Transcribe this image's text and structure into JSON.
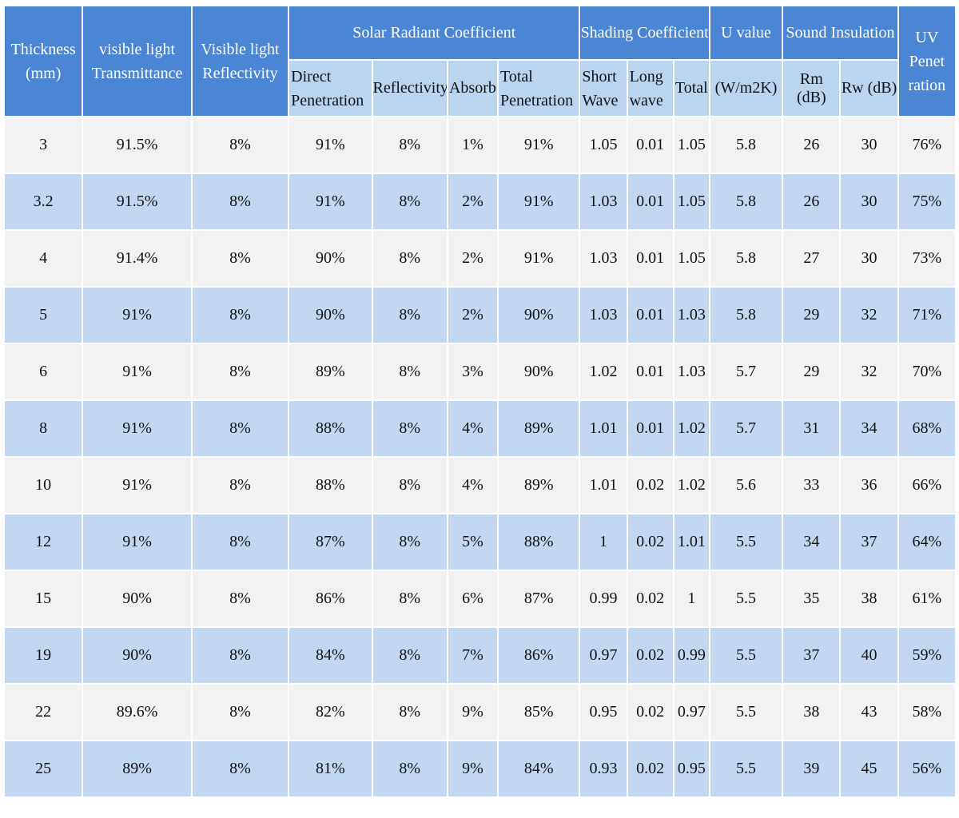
{
  "headers": {
    "thickness": "Thickness (mm)",
    "visible_transmittance": "visible light Transmittance",
    "visible_reflectivity": "Visible light Reflectivity",
    "solar_group": "Solar Radiant Coefficient",
    "solar_direct": "Direct Penetration",
    "solar_reflectivity": "Reflectivity",
    "solar_absorb": "Absorb",
    "solar_total": "Total Penetration",
    "shading_group": "Shading Coefficient",
    "shading_short": "Short Wave",
    "shading_long": "Long wave",
    "shading_total": "Total",
    "u_group": "U value",
    "u_unit": "(W/m2K)",
    "sound_group": "Sound Insulation",
    "sound_rm": "Rm (dB)",
    "sound_rw": "Rw (dB)",
    "uv": "UV Penet ration"
  },
  "rows": [
    [
      "3",
      "91.5%",
      "8%",
      "91%",
      "8%",
      "1%",
      "91%",
      "1.05",
      "0.01",
      "1.05",
      "5.8",
      "26",
      "30",
      "76%"
    ],
    [
      "3.2",
      "91.5%",
      "8%",
      "91%",
      "8%",
      "2%",
      "91%",
      "1.03",
      "0.01",
      "1.05",
      "5.8",
      "26",
      "30",
      "75%"
    ],
    [
      "4",
      "91.4%",
      "8%",
      "90%",
      "8%",
      "2%",
      "91%",
      "1.03",
      "0.01",
      "1.05",
      "5.8",
      "27",
      "30",
      "73%"
    ],
    [
      "5",
      "91%",
      "8%",
      "90%",
      "8%",
      "2%",
      "90%",
      "1.03",
      "0.01",
      "1.03",
      "5.8",
      "29",
      "32",
      "71%"
    ],
    [
      "6",
      "91%",
      "8%",
      "89%",
      "8%",
      "3%",
      "90%",
      "1.02",
      "0.01",
      "1.03",
      "5.7",
      "29",
      "32",
      "70%"
    ],
    [
      "8",
      "91%",
      "8%",
      "88%",
      "8%",
      "4%",
      "89%",
      "1.01",
      "0.01",
      "1.02",
      "5.7",
      "31",
      "34",
      "68%"
    ],
    [
      "10",
      "91%",
      "8%",
      "88%",
      "8%",
      "4%",
      "89%",
      "1.01",
      "0.02",
      "1.02",
      "5.6",
      "33",
      "36",
      "66%"
    ],
    [
      "12",
      "91%",
      "8%",
      "87%",
      "8%",
      "5%",
      "88%",
      "1",
      "0.02",
      "1.01",
      "5.5",
      "34",
      "37",
      "64%"
    ],
    [
      "15",
      "90%",
      "8%",
      "86%",
      "8%",
      "6%",
      "87%",
      "0.99",
      "0.02",
      "1",
      "5.5",
      "35",
      "38",
      "61%"
    ],
    [
      "19",
      "90%",
      "8%",
      "84%",
      "8%",
      "7%",
      "86%",
      "0.97",
      "0.02",
      "0.99",
      "5.5",
      "37",
      "40",
      "59%"
    ],
    [
      "22",
      "89.6%",
      "8%",
      "82%",
      "8%",
      "9%",
      "85%",
      "0.95",
      "0.02",
      "0.97",
      "5.5",
      "38",
      "43",
      "58%"
    ],
    [
      "25",
      "89%",
      "8%",
      "81%",
      "8%",
      "9%",
      "84%",
      "0.93",
      "0.02",
      "0.95",
      "5.5",
      "39",
      "45",
      "56%"
    ]
  ]
}
